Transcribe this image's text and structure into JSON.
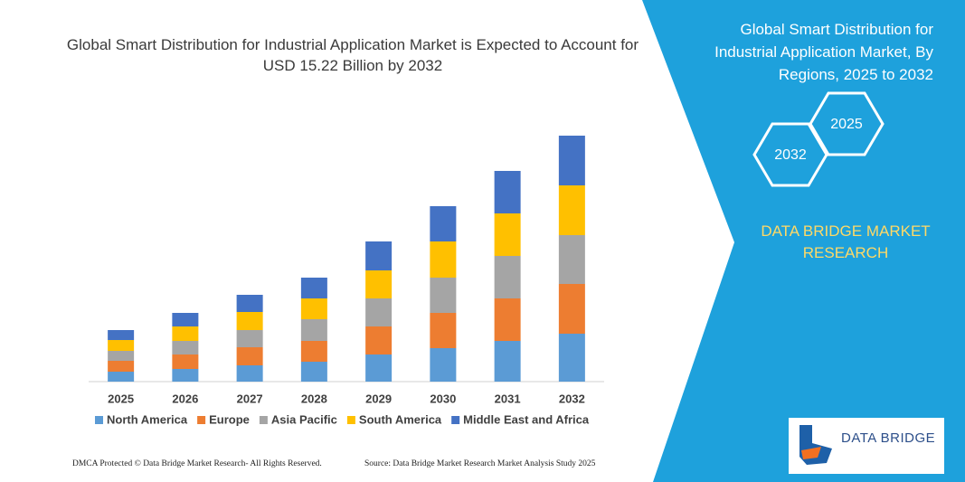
{
  "chart_data": {
    "type": "bar",
    "stacked": true,
    "title": "Global Smart Distribution for Industrial Application Market is Expected to Account for USD 15.22 Billion by 2032",
    "categories": [
      "2025",
      "2026",
      "2027",
      "2028",
      "2029",
      "2030",
      "2031",
      "2032"
    ],
    "series": [
      {
        "name": "North America",
        "color": "#5b9bd5",
        "values": [
          11,
          14,
          18,
          22,
          30,
          37,
          45,
          53
        ]
      },
      {
        "name": "Europe",
        "color": "#ed7d31",
        "values": [
          12,
          16,
          20,
          23,
          31,
          39,
          47,
          55
        ]
      },
      {
        "name": "Asia Pacific",
        "color": "#a5a5a5",
        "values": [
          11,
          15,
          19,
          24,
          31,
          39,
          47,
          54
        ]
      },
      {
        "name": "South America",
        "color": "#ffc000",
        "values": [
          12,
          16,
          20,
          23,
          31,
          40,
          47,
          55
        ]
      },
      {
        "name": "Middle East and Africa",
        "color": "#4472c4",
        "values": [
          11,
          15,
          19,
          23,
          32,
          39,
          47,
          55
        ]
      }
    ],
    "legend": "bottom"
  },
  "panel": {
    "title": "Global Smart Distribution for Industrial Application Market, By Regions, 2025 to 2032",
    "hexagons": [
      "2032",
      "2025"
    ],
    "brand": "DATA BRIDGE MARKET RESEARCH"
  },
  "footer": {
    "left": "DMCA Protected © Data Bridge Market Research-  All Rights Reserved.",
    "right": "Source: Data Bridge Market Research  Market Analysis Study 2025"
  },
  "logo": "DATA BRIDGE"
}
